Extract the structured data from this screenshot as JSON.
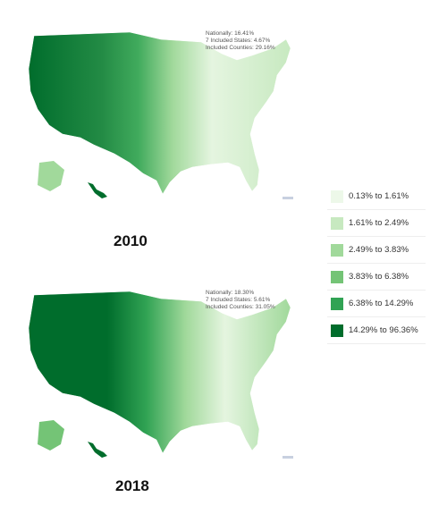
{
  "maps": [
    {
      "year": "2010",
      "stats": {
        "national": "Nationally: 16.41%",
        "states": "7 Included States: 4.67%",
        "counties": "Included Counties: 29.16%"
      }
    },
    {
      "year": "2018",
      "stats": {
        "national": "Nationally: 18.30%",
        "states": "7 Included States: 5.61%",
        "counties": "Included Counties: 31.05%"
      }
    }
  ],
  "legend": [
    {
      "label": "0.13% to 1.61%",
      "color": "#edf8e9"
    },
    {
      "label": "1.61% to 2.49%",
      "color": "#c7e9c0"
    },
    {
      "label": "2.49% to 3.83%",
      "color": "#a1d99b"
    },
    {
      "label": "3.83% to 6.38%",
      "color": "#74c476"
    },
    {
      "label": "6.38% to 14.29%",
      "color": "#31a354"
    },
    {
      "label": "14.29% to 96.36%",
      "color": "#006d2c"
    }
  ]
}
